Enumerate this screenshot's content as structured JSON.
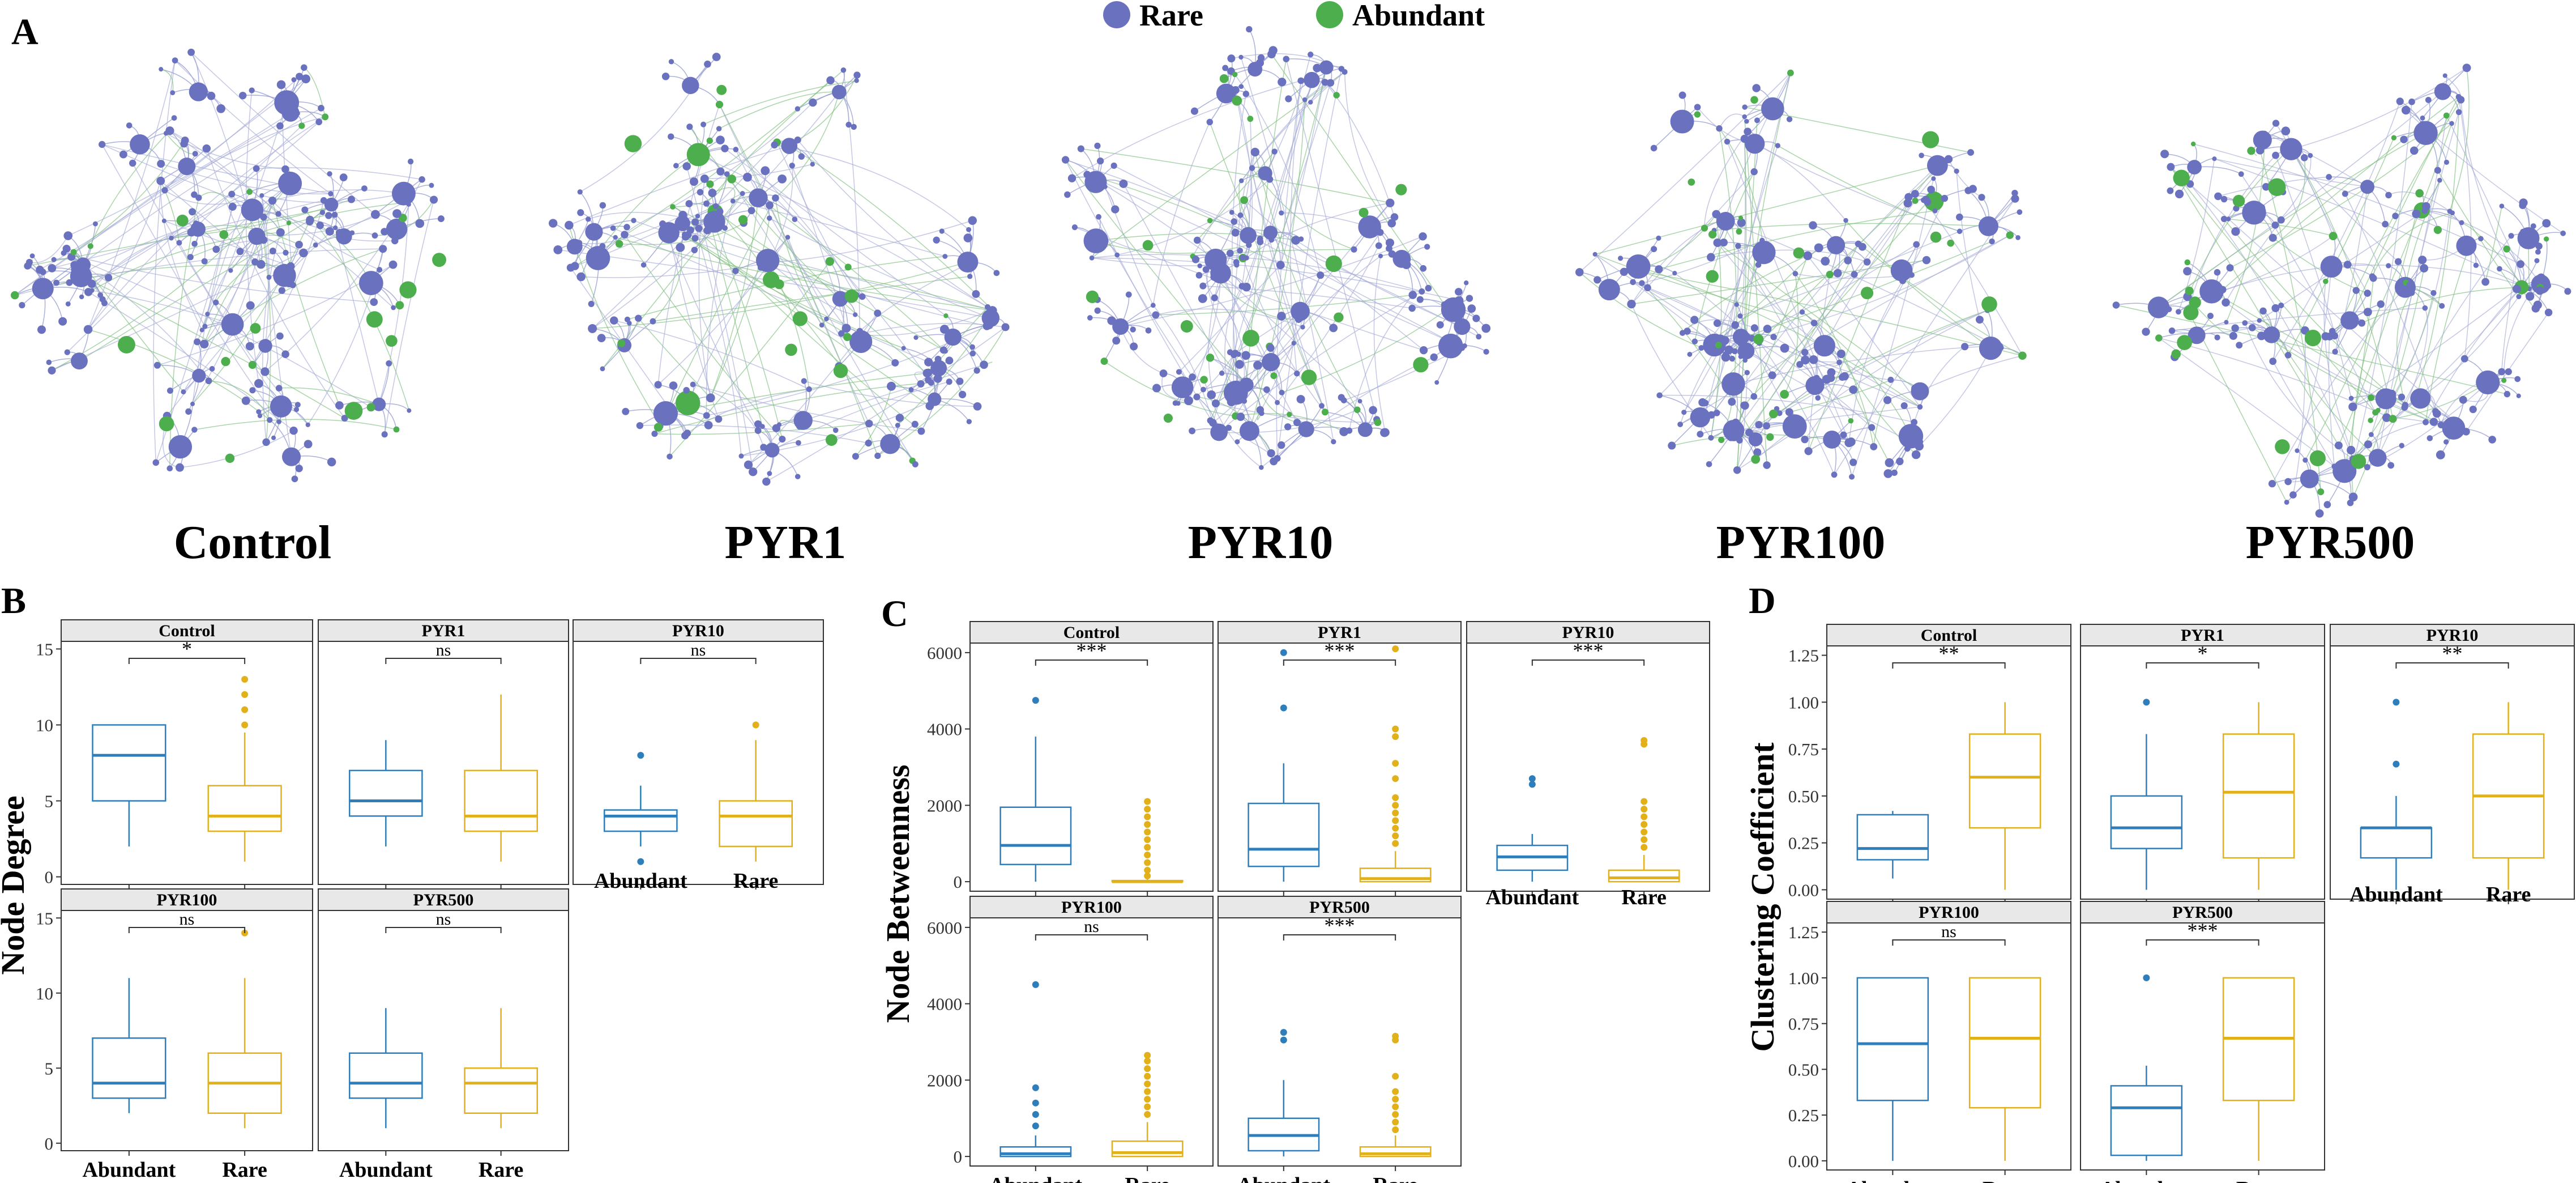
{
  "panel_a": {
    "label": "A",
    "legend": [
      {
        "name": "Rare",
        "color": "#6a72c0"
      },
      {
        "name": "Abundant",
        "color": "#4cae4c"
      }
    ],
    "networks": [
      "Control",
      "PYR1",
      "PYR10",
      "PYR100",
      "PYR500"
    ]
  },
  "colors": {
    "abundant": "#2e7ebc",
    "rare": "#e2b11a",
    "strip_fill": "#e8e8e8",
    "rare_node": "#6a72c0",
    "abundant_node": "#4cae4c"
  },
  "chart_data": [
    {
      "type": "boxplot",
      "panel": "B",
      "ylabel": "Node Degree",
      "categories": [
        "Abundant",
        "Rare"
      ],
      "ylim": [
        -0.5,
        15.5
      ],
      "yticks": [
        0,
        5,
        10,
        15
      ],
      "facets": [
        {
          "name": "Control",
          "sig": "*",
          "abundant": {
            "q1": 5,
            "median": 8,
            "q3": 10,
            "lower": 2,
            "upper": 10,
            "outliers": []
          },
          "rare": {
            "q1": 3,
            "median": 4,
            "q3": 6,
            "lower": 1,
            "upper": 9.5,
            "outliers": [
              10,
              11,
              12,
              13
            ]
          }
        },
        {
          "name": "PYR1",
          "sig": "ns",
          "abundant": {
            "q1": 4,
            "median": 5,
            "q3": 7,
            "lower": 2,
            "upper": 9,
            "outliers": []
          },
          "rare": {
            "q1": 3,
            "median": 4,
            "q3": 7,
            "lower": 1,
            "upper": 12,
            "outliers": []
          }
        },
        {
          "name": "PYR10",
          "sig": "ns",
          "abundant": {
            "q1": 3,
            "median": 4,
            "q3": 4.4,
            "lower": 2,
            "upper": 6,
            "outliers": [
              1,
              8
            ]
          },
          "rare": {
            "q1": 2,
            "median": 4,
            "q3": 5,
            "lower": 1,
            "upper": 9,
            "outliers": [
              10
            ]
          }
        },
        {
          "name": "PYR100",
          "sig": "ns",
          "abundant": {
            "q1": 3,
            "median": 4,
            "q3": 7,
            "lower": 2,
            "upper": 11,
            "outliers": []
          },
          "rare": {
            "q1": 2,
            "median": 4,
            "q3": 6,
            "lower": 1,
            "upper": 11,
            "outliers": [
              14
            ]
          }
        },
        {
          "name": "PYR500",
          "sig": "ns",
          "abundant": {
            "q1": 3,
            "median": 4,
            "q3": 6,
            "lower": 1,
            "upper": 9,
            "outliers": []
          },
          "rare": {
            "q1": 2,
            "median": 4,
            "q3": 5,
            "lower": 1,
            "upper": 9,
            "outliers": []
          }
        }
      ]
    },
    {
      "type": "boxplot",
      "panel": "C",
      "ylabel": "Node Betweenness",
      "categories": [
        "Abundant",
        "Rare"
      ],
      "ylim": [
        -250,
        6250
      ],
      "yticks": [
        0,
        2000,
        4000,
        6000
      ],
      "facets": [
        {
          "name": "Control",
          "sig": "***",
          "abundant": {
            "q1": 450,
            "median": 950,
            "q3": 1950,
            "lower": 0,
            "upper": 3800,
            "outliers": [
              4750
            ]
          },
          "rare": {
            "q1": 0,
            "median": 0,
            "q3": 30,
            "lower": 0,
            "upper": 70,
            "outliers": [
              150,
              300,
              500,
              700,
              900,
              1100,
              1300,
              1500,
              1700,
              1900,
              2100
            ]
          }
        },
        {
          "name": "PYR1",
          "sig": "***",
          "abundant": {
            "q1": 400,
            "median": 850,
            "q3": 2050,
            "lower": 0,
            "upper": 3100,
            "outliers": [
              4550,
              6000
            ]
          },
          "rare": {
            "q1": 0,
            "median": 80,
            "q3": 350,
            "lower": 0,
            "upper": 800,
            "outliers": [
              1000,
              1200,
              1400,
              1600,
              1800,
              2000,
              2200,
              2700,
              3100,
              3800,
              4000,
              6100
            ]
          }
        },
        {
          "name": "PYR10",
          "sig": "***",
          "abundant": {
            "q1": 300,
            "median": 650,
            "q3": 950,
            "lower": 0,
            "upper": 1250,
            "outliers": [
              2550,
              2700
            ]
          },
          "rare": {
            "q1": 0,
            "median": 100,
            "q3": 300,
            "lower": 0,
            "upper": 700,
            "outliers": [
              900,
              1100,
              1300,
              1500,
              1700,
              1900,
              2100,
              3600,
              3700
            ]
          }
        },
        {
          "name": "PYR100",
          "sig": "ns",
          "abundant": {
            "q1": 0,
            "median": 70,
            "q3": 250,
            "lower": 0,
            "upper": 550,
            "outliers": [
              800,
              1100,
              1400,
              1800,
              4500
            ]
          },
          "rare": {
            "q1": 0,
            "median": 100,
            "q3": 400,
            "lower": 0,
            "upper": 900,
            "outliers": [
              1100,
              1300,
              1500,
              1700,
              1900,
              2100,
              2300,
              2500,
              2650
            ]
          }
        },
        {
          "name": "PYR500",
          "sig": "***",
          "abundant": {
            "q1": 150,
            "median": 550,
            "q3": 1000,
            "lower": 0,
            "upper": 2000,
            "outliers": [
              3050,
              3250
            ]
          },
          "rare": {
            "q1": 0,
            "median": 70,
            "q3": 250,
            "lower": 0,
            "upper": 550,
            "outliers": [
              700,
              900,
              1100,
              1300,
              1500,
              1700,
              2100,
              3050,
              3150
            ]
          }
        }
      ]
    },
    {
      "type": "boxplot",
      "panel": "D",
      "ylabel": "Clustering Coefficient",
      "categories": [
        "Abundant",
        "Rare"
      ],
      "ylim": [
        -0.05,
        1.3
      ],
      "yticks": [
        0,
        0.25,
        0.5,
        0.75,
        1,
        1.25
      ],
      "ytick_labels": [
        "0.00",
        "0.25",
        "0.50",
        "0.75",
        "1.00",
        "1.25"
      ],
      "facets": [
        {
          "name": "Control",
          "sig": "**",
          "abundant": {
            "q1": 0.16,
            "median": 0.22,
            "q3": 0.4,
            "lower": 0.06,
            "upper": 0.42,
            "outliers": []
          },
          "rare": {
            "q1": 0.33,
            "median": 0.6,
            "q3": 0.83,
            "lower": 0,
            "upper": 1,
            "outliers": []
          }
        },
        {
          "name": "PYR1",
          "sig": "*",
          "abundant": {
            "q1": 0.22,
            "median": 0.33,
            "q3": 0.5,
            "lower": 0,
            "upper": 0.83,
            "outliers": [
              1
            ]
          },
          "rare": {
            "q1": 0.17,
            "median": 0.52,
            "q3": 0.83,
            "lower": 0,
            "upper": 1,
            "outliers": []
          }
        },
        {
          "name": "PYR10",
          "sig": "**",
          "abundant": {
            "q1": 0.17,
            "median": 0.33,
            "q3": 0.33,
            "lower": 0,
            "upper": 0.5,
            "outliers": [
              0.67,
              1
            ]
          },
          "rare": {
            "q1": 0.17,
            "median": 0.5,
            "q3": 0.83,
            "lower": 0,
            "upper": 1,
            "outliers": []
          }
        },
        {
          "name": "PYR100",
          "sig": "ns",
          "abundant": {
            "q1": 0.33,
            "median": 0.64,
            "q3": 1,
            "lower": 0,
            "upper": 1,
            "outliers": []
          },
          "rare": {
            "q1": 0.29,
            "median": 0.67,
            "q3": 1,
            "lower": 0,
            "upper": 1,
            "outliers": []
          }
        },
        {
          "name": "PYR500",
          "sig": "***",
          "abundant": {
            "q1": 0.03,
            "median": 0.29,
            "q3": 0.41,
            "lower": 0,
            "upper": 0.52,
            "outliers": [
              1
            ]
          },
          "rare": {
            "q1": 0.33,
            "median": 0.67,
            "q3": 1,
            "lower": 0,
            "upper": 1,
            "outliers": []
          }
        }
      ]
    }
  ]
}
